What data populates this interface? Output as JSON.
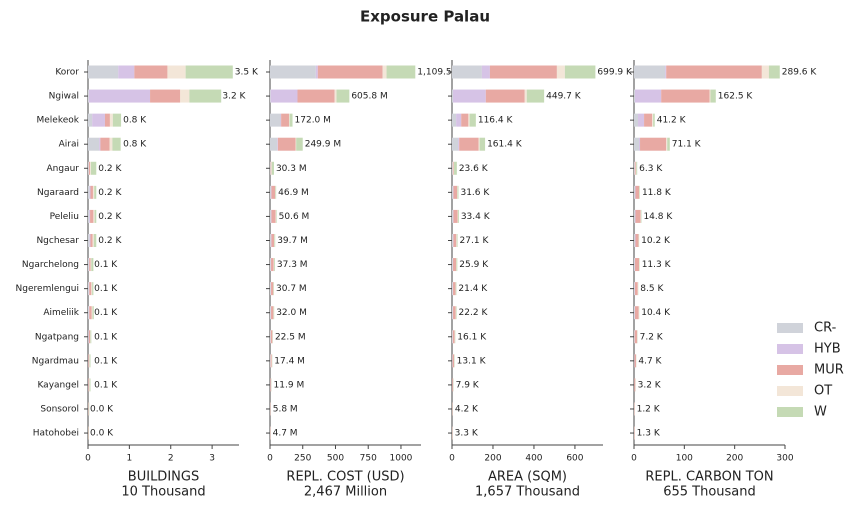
{
  "title": "Exposure Palau",
  "categories": [
    "Koror",
    "Ngiwal",
    "Melekeok",
    "Airai",
    "Angaur",
    "Ngaraard",
    "Peleliu",
    "Ngchesar",
    "Ngarchelong",
    "Ngeremlengui",
    "Aimeliik",
    "Ngatpang",
    "Ngardmau",
    "Kayangel",
    "Sonsorol",
    "Hatohobei"
  ],
  "series": [
    {
      "name": "CR-",
      "color": "#d0d3da"
    },
    {
      "name": "HYB",
      "color": "#d6c3e6"
    },
    {
      "name": "MUR",
      "color": "#e8a9a3"
    },
    {
      "name": "OT",
      "color": "#f3e6d8"
    },
    {
      "name": "W",
      "color": "#c5dab5"
    }
  ],
  "legend_position": "right",
  "chart_data": [
    {
      "type": "bar",
      "orientation": "horizontal",
      "xlabel": "BUILDINGS",
      "subtitle": "10 Thousand",
      "xlim": [
        0,
        3.65
      ],
      "xticks": [
        0,
        1,
        2,
        3
      ],
      "series": [
        {
          "values": [
            0.73,
            0.02,
            0.1,
            0.27,
            0.02,
            0.04,
            0.03,
            0.04,
            0.02,
            0.02,
            0.02,
            0.01,
            0.01,
            0.01,
            0.005,
            0.005
          ]
        },
        {
          "values": [
            0.39,
            1.48,
            0.31,
            0.03,
            0,
            0.02,
            0.02,
            0.02,
            0.01,
            0.01,
            0.01,
            0.01,
            0,
            0,
            0,
            0
          ]
        },
        {
          "values": [
            0.8,
            0.73,
            0.12,
            0.22,
            0.03,
            0.06,
            0.08,
            0.05,
            0.03,
            0.05,
            0.06,
            0.03,
            0.02,
            0.02,
            0.01,
            0.008
          ]
        },
        {
          "values": [
            0.44,
            0.22,
            0.07,
            0.07,
            0.02,
            0.03,
            0.03,
            0.03,
            0.02,
            0.02,
            0.02,
            0.01,
            0.01,
            0.01,
            0.005,
            0.005
          ]
        },
        {
          "values": [
            1.14,
            0.77,
            0.2,
            0.2,
            0.13,
            0.05,
            0.04,
            0.06,
            0.05,
            0.03,
            0.03,
            0.02,
            0.02,
            0.02,
            0.01,
            0.005
          ]
        }
      ],
      "totals": [
        3.5,
        3.2,
        0.8,
        0.8,
        0.2,
        0.2,
        0.2,
        0.2,
        0.1,
        0.1,
        0.1,
        0.1,
        0.1,
        0.1,
        0.0,
        0.0
      ],
      "total_labels": [
        "3.5 K",
        "3.2 K",
        "0.8 K",
        "0.8 K",
        "0.2 K",
        "0.2 K",
        "0.2 K",
        "0.2 K",
        "0.1 K",
        "0.1 K",
        "0.1 K",
        "0.1 K",
        "0.1 K",
        "0.1 K",
        "0.0 K",
        "0.0 K"
      ]
    },
    {
      "type": "bar",
      "orientation": "horizontal",
      "xlabel": "REPL. COST (USD)",
      "subtitle": "2,467 Million",
      "xlim": [
        0,
        1153
      ],
      "xticks": [
        0,
        250,
        500,
        750,
        1000
      ],
      "series": [
        {
          "values": [
            350,
            5,
            80,
            55,
            5,
            8,
            8,
            8,
            6,
            6,
            6,
            5,
            4,
            3,
            1.5,
            1.2
          ]
        },
        {
          "values": [
            15,
            205,
            5,
            5,
            0,
            3,
            3,
            3,
            2,
            2,
            2,
            1,
            1,
            0,
            0,
            0
          ]
        },
        {
          "values": [
            495,
            283,
            60,
            135,
            5,
            28,
            32,
            20,
            20,
            17,
            18,
            12,
            8,
            6,
            3,
            2.5
          ]
        },
        {
          "values": [
            30,
            15,
            5,
            5,
            3,
            3,
            3,
            3,
            3,
            2,
            2,
            2,
            2,
            1,
            0.5,
            0.5
          ]
        },
        {
          "values": [
            219.5,
            97.8,
            22,
            49.9,
            17.3,
            4.9,
            4.6,
            5.7,
            6.3,
            3.7,
            4,
            2.5,
            2.4,
            1.9,
            0.8,
            0.5
          ]
        }
      ],
      "totals": [
        1109.5,
        605.8,
        172.0,
        249.9,
        30.3,
        46.9,
        50.6,
        39.7,
        37.3,
        30.7,
        32.0,
        22.5,
        17.4,
        11.9,
        5.8,
        4.7
      ],
      "total_labels": [
        "1,109.5",
        "605.8 M",
        "172.0 M",
        "249.9 M",
        "30.3 M",
        "46.9 M",
        "50.6 M",
        "39.7 M",
        "37.3 M",
        "30.7 M",
        "32.0 M",
        "22.5 M",
        "17.4 M",
        "11.9 M",
        "5.8 M",
        "4.7 M"
      ]
    },
    {
      "type": "bar",
      "orientation": "horizontal",
      "xlabel": "AREA (SQM)",
      "subtitle": "1,657 Thousand",
      "xlim": [
        0,
        737
      ],
      "xticks": [
        0,
        200,
        400,
        600
      ],
      "series": [
        {
          "values": [
            146,
            5,
            20,
            30,
            4,
            5,
            5,
            5,
            4,
            4,
            4,
            3,
            2,
            1.5,
            1,
            0.8
          ]
        },
        {
          "values": [
            39,
            160,
            25,
            5,
            0,
            2,
            2,
            2,
            1,
            1,
            1,
            1,
            1,
            0,
            0,
            0
          ]
        },
        {
          "values": [
            327,
            190,
            35,
            95,
            4,
            18,
            20,
            14,
            15,
            12,
            13,
            9,
            7,
            4,
            2,
            1.6
          ]
        },
        {
          "values": [
            39,
            10,
            6,
            5,
            2,
            2,
            2,
            2,
            2,
            1,
            1,
            1,
            1,
            1,
            0.5,
            0.4
          ]
        },
        {
          "values": [
            148.9,
            84.7,
            30.4,
            26.4,
            13.6,
            4.6,
            4.4,
            4.1,
            3.9,
            3.4,
            3.2,
            2.1,
            2.1,
            1.4,
            0.7,
            0.5
          ]
        }
      ],
      "totals": [
        699.9,
        449.7,
        116.4,
        161.4,
        23.6,
        31.6,
        33.4,
        27.1,
        25.9,
        21.4,
        22.2,
        16.1,
        13.1,
        7.9,
        4.2,
        3.3
      ],
      "total_labels": [
        "699.9 K",
        "449.7 K",
        "116.4 K",
        "161.4 K",
        "23.6 K",
        "31.6 K",
        "33.4 K",
        "27.1 K",
        "25.9 K",
        "21.4 K",
        "22.2 K",
        "16.1 K",
        "13.1 K",
        "7.9 K",
        "4.2 K",
        "3.3 K"
      ]
    },
    {
      "type": "bar",
      "orientation": "horizontal",
      "xlabel": "REPL. CARBON TON",
      "subtitle": "655 Thousand",
      "xlim": [
        0,
        300
      ],
      "xticks": [
        0,
        100,
        200,
        300
      ],
      "series": [
        {
          "values": [
            62,
            2,
            8,
            10,
            1.5,
            2,
            2,
            2,
            1.5,
            1.5,
            1.5,
            1,
            0.8,
            0.5,
            0.2,
            0.2
          ]
        },
        {
          "values": [
            2,
            52,
            12,
            2,
            0,
            1,
            1,
            1,
            0.5,
            0.5,
            0.5,
            0.3,
            0.2,
            0,
            0,
            0
          ]
        },
        {
          "values": [
            190,
            96,
            16,
            52,
            2,
            7,
            10,
            6,
            8,
            5.5,
            7.4,
            5,
            3,
            2.2,
            0.8,
            0.9
          ]
        },
        {
          "values": [
            14,
            2,
            2,
            2,
            1,
            0.8,
            0.8,
            0.5,
            0.5,
            0.5,
            0.5,
            0.4,
            0.3,
            0.2,
            0.1,
            0.1
          ]
        },
        {
          "values": [
            21.6,
            10.5,
            3.2,
            5.1,
            1.8,
            1,
            1,
            0.7,
            0.8,
            0.5,
            0.5,
            0.5,
            0.4,
            0.3,
            0.1,
            0.1
          ]
        }
      ],
      "totals": [
        289.6,
        162.5,
        41.2,
        71.1,
        6.3,
        11.8,
        14.8,
        10.2,
        11.3,
        8.5,
        10.4,
        7.2,
        4.7,
        3.2,
        1.2,
        1.3
      ],
      "total_labels": [
        "289.6 K",
        "162.5 K",
        "41.2 K",
        "71.1 K",
        "6.3 K",
        "11.8 K",
        "14.8 K",
        "10.2 K",
        "11.3 K",
        "8.5 K",
        "10.4 K",
        "7.2 K",
        "4.7 K",
        "3.2 K",
        "1.2 K",
        "1.3 K"
      ]
    }
  ]
}
